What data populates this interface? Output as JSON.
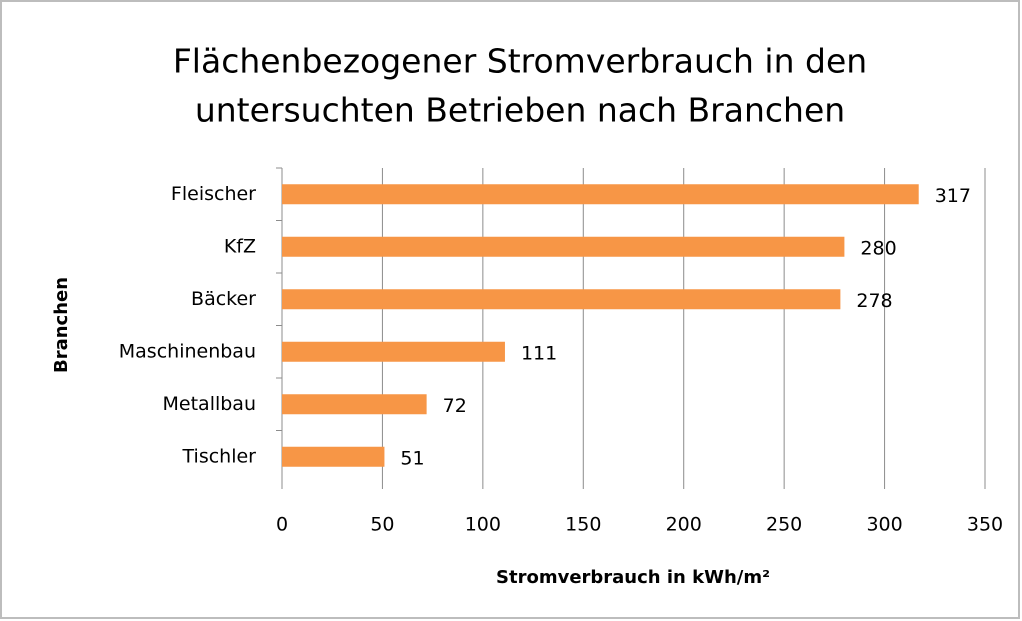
{
  "chart_data": {
    "type": "barh",
    "title": [
      "Flächenbezogener Stromverbrauch in den",
      "untersuchten Betrieben nach Branchen"
    ],
    "x_label": "Stromverbrauch in kWh/m²",
    "y_label": "Branchen",
    "categories": [
      "Fleischer",
      "KfZ",
      "Bäcker",
      "Maschinenbau",
      "Metallbau",
      "Tischler"
    ],
    "values": [
      317,
      280,
      278,
      111,
      72,
      51
    ],
    "color": "#f79646",
    "xlim": [
      0,
      350
    ],
    "xticks": [
      0,
      50,
      100,
      150,
      200,
      250,
      300,
      350
    ],
    "grid": true
  }
}
